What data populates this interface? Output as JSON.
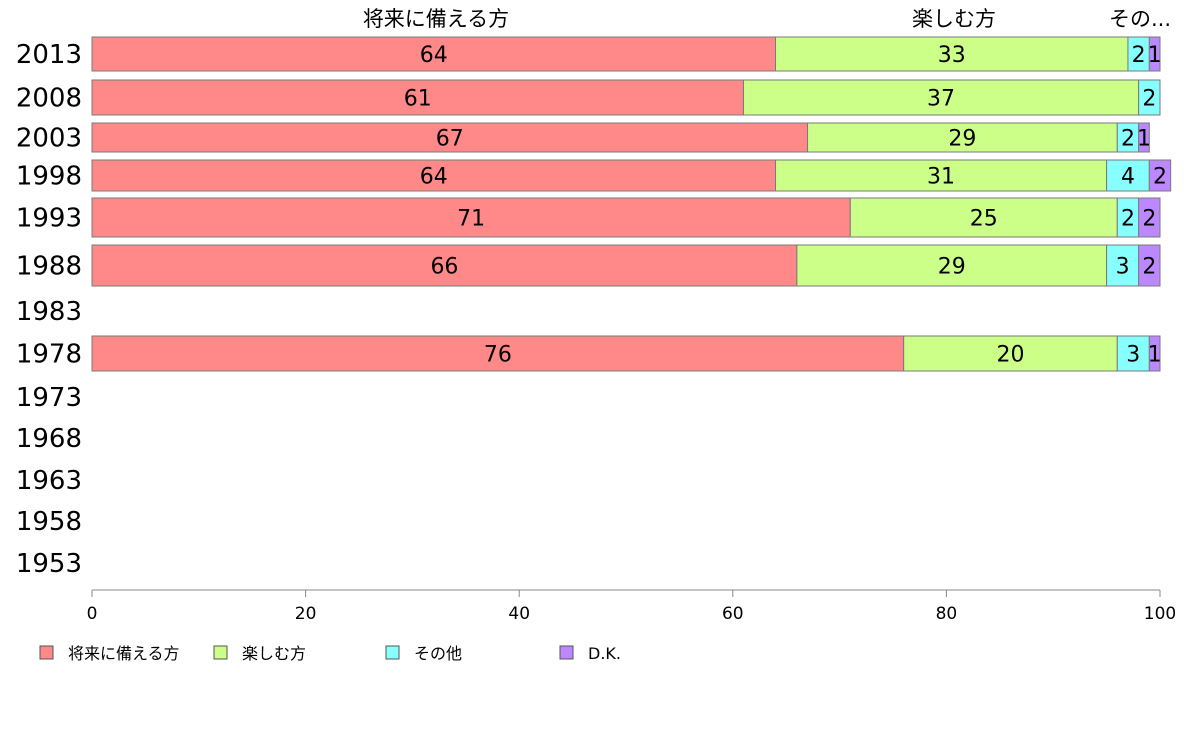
{
  "chart_data": {
    "type": "bar",
    "orientation": "horizontal",
    "stacked": true,
    "categories": [
      "2013",
      "2008",
      "2003",
      "1998",
      "1993",
      "1988",
      "1983",
      "1978",
      "1973",
      "1968",
      "1963",
      "1958",
      "1953"
    ],
    "series": [
      {
        "name": "将来に備える方",
        "color": "#ff8888",
        "values": [
          64,
          61,
          67,
          64,
          71,
          66,
          null,
          76,
          null,
          null,
          null,
          null,
          null
        ]
      },
      {
        "name": "楽しむ方",
        "color": "#ccff88",
        "values": [
          33,
          37,
          29,
          31,
          25,
          29,
          null,
          20,
          null,
          null,
          null,
          null,
          null
        ]
      },
      {
        "name": "その他",
        "color": "#88ffff",
        "values": [
          2,
          2,
          2,
          4,
          2,
          3,
          null,
          3,
          null,
          null,
          null,
          null,
          null
        ]
      },
      {
        "name": "D.K.",
        "color": "#bb88ff",
        "values": [
          1,
          null,
          1,
          2,
          2,
          2,
          null,
          1,
          null,
          null,
          null,
          null,
          null
        ]
      }
    ],
    "column_headers": [
      "将来に備える方",
      "楽しむ方",
      "その..."
    ],
    "xlim": [
      0,
      100
    ],
    "xticks": [
      0,
      20,
      40,
      60,
      80,
      100
    ],
    "xlabel": "",
    "ylabel": "",
    "title": "",
    "grid": false,
    "legend_position": "bottom"
  }
}
